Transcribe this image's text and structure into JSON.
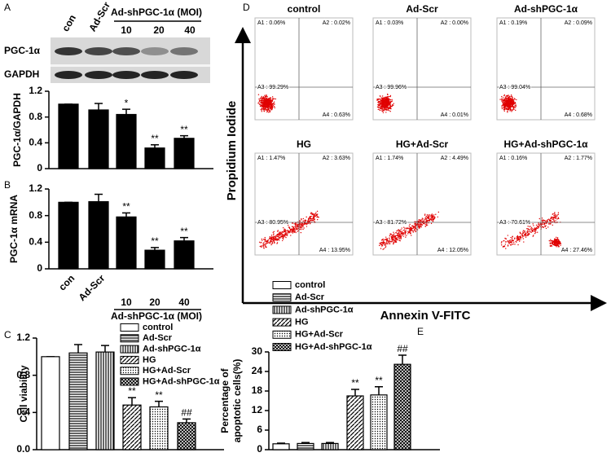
{
  "panel_labels": [
    "A",
    "B",
    "C",
    "D",
    "E"
  ],
  "western_blot": {
    "header": [
      "con",
      "Ad-Scr"
    ],
    "group_label": "Ad-shPGC-1α (MOI)",
    "doses": [
      "10",
      "20",
      "40"
    ],
    "rows": [
      "PGC-1α",
      "GAPDH"
    ]
  },
  "flow_cytometry": {
    "y_label": "Propidium Iodide",
    "x_label": "Annexin V-FITC",
    "panels": [
      {
        "title": "control",
        "quadrants": [
          "A1 : 0.06%",
          "A2 : 0.02%",
          "A3 : 99.29%",
          "A4 : 0.63%"
        ]
      },
      {
        "title": "Ad-Scr",
        "quadrants": [
          "A1 : 0.03%",
          "A2 : 0.00%",
          "A3 : 99.96%",
          "A4 : 0.01%"
        ]
      },
      {
        "title": "Ad-shPGC-1α",
        "quadrants": [
          "A1 : 0.19%",
          "A2 : 0.09%",
          "A3 : 99.04%",
          "A4 : 0.68%"
        ]
      },
      {
        "title": "HG",
        "quadrants": [
          "A1 : 1.47%",
          "A2 : 3.63%",
          "A3 : 80.95%",
          "A4 : 13.95%"
        ]
      },
      {
        "title": "HG+Ad-Scr",
        "quadrants": [
          "A1 : 1.74%",
          "A2 : 4.49%",
          "A3 : 81.72%",
          "A4 : 12.05%"
        ]
      },
      {
        "title": "HG+Ad-shPGC-1α",
        "quadrants": [
          "A1 : 0.16%",
          "A2 : 1.77%",
          "A3 : 70.61%",
          "A4 : 27.46%"
        ]
      }
    ]
  },
  "chart_data": [
    {
      "type": "bar",
      "y_label": "PGC-1α/GAPDH",
      "categories": [
        null,
        null,
        null,
        null,
        null
      ],
      "values": [
        1.0,
        0.91,
        0.84,
        0.32,
        0.47
      ],
      "errors": [
        0,
        0.1,
        0.08,
        0.05,
        0.04
      ],
      "annotations": [
        null,
        null,
        "*",
        "**",
        "**"
      ],
      "color": "#000000",
      "ylim": [
        0,
        1.2
      ],
      "yticks": [
        0,
        0.4,
        0.8,
        1.2
      ]
    },
    {
      "type": "bar",
      "y_label": "PGC-1α mRNA",
      "categories": [
        "con",
        "Ad-Scr",
        "10",
        "20",
        "40"
      ],
      "group_label": "Ad-shPGC-1α (MOI)",
      "values": [
        1.0,
        1.01,
        0.78,
        0.28,
        0.42
      ],
      "errors": [
        0,
        0.11,
        0.06,
        0.04,
        0.05
      ],
      "annotations": [
        null,
        null,
        "**",
        "**",
        "**"
      ],
      "color": "#000000",
      "ylim": [
        0,
        1.2
      ],
      "yticks": [
        0,
        0.4,
        0.8,
        1.2
      ]
    },
    {
      "type": "bar",
      "y_label": "Cell viability",
      "series": [
        {
          "name": "control",
          "pattern": "white",
          "values": [
            1.0
          ],
          "errors": [
            0
          ]
        },
        {
          "name": "Ad-Scr",
          "pattern": "horizontal",
          "values": [
            1.04
          ],
          "errors": [
            0.09
          ]
        },
        {
          "name": "Ad-shPGC-1α",
          "pattern": "vertical",
          "values": [
            1.05
          ],
          "errors": [
            0.07
          ]
        },
        {
          "name": "HG",
          "pattern": "diagonal",
          "values": [
            0.48
          ],
          "errors": [
            0.08
          ],
          "annotations": [
            "**"
          ]
        },
        {
          "name": "HG+Ad-Scr",
          "pattern": "dotted",
          "values": [
            0.46
          ],
          "errors": [
            0.06
          ],
          "annotations": [
            "**"
          ]
        },
        {
          "name": "HG+Ad-shPGC-1α",
          "pattern": "crosshatch",
          "values": [
            0.29
          ],
          "errors": [
            0.04
          ],
          "annotations": [
            "##"
          ]
        }
      ],
      "ylim": [
        0,
        1.2
      ],
      "yticks": [
        {
          "value": 0,
          "label": "0.0"
        },
        0.4,
        0.8,
        1.2
      ]
    },
    {
      "type": "bar",
      "y_label": [
        "Percentage of",
        "apoptotic cells(%)"
      ],
      "series": [
        {
          "name": "control",
          "pattern": "white",
          "values": [
            1.8
          ],
          "errors": [
            0.2
          ]
        },
        {
          "name": "Ad-Scr",
          "pattern": "horizontal",
          "values": [
            1.9
          ],
          "errors": [
            0.3
          ]
        },
        {
          "name": "Ad-shPGC-1α",
          "pattern": "vertical",
          "values": [
            1.9
          ],
          "errors": [
            0.3
          ]
        },
        {
          "name": "HG",
          "pattern": "diagonal",
          "values": [
            16.5
          ],
          "errors": [
            2.0
          ],
          "annotations": [
            "**"
          ]
        },
        {
          "name": "HG+Ad-Scr",
          "pattern": "dotted",
          "values": [
            16.8
          ],
          "errors": [
            2.5
          ],
          "annotations": [
            "**"
          ]
        },
        {
          "name": "HG+Ad-shPGC-1α",
          "pattern": "crosshatch",
          "values": [
            26.2
          ],
          "errors": [
            2.8
          ],
          "annotations": [
            "##"
          ]
        }
      ],
      "ylim": [
        0,
        30
      ],
      "yticks": [
        0,
        6,
        12,
        18,
        24,
        30
      ]
    }
  ]
}
